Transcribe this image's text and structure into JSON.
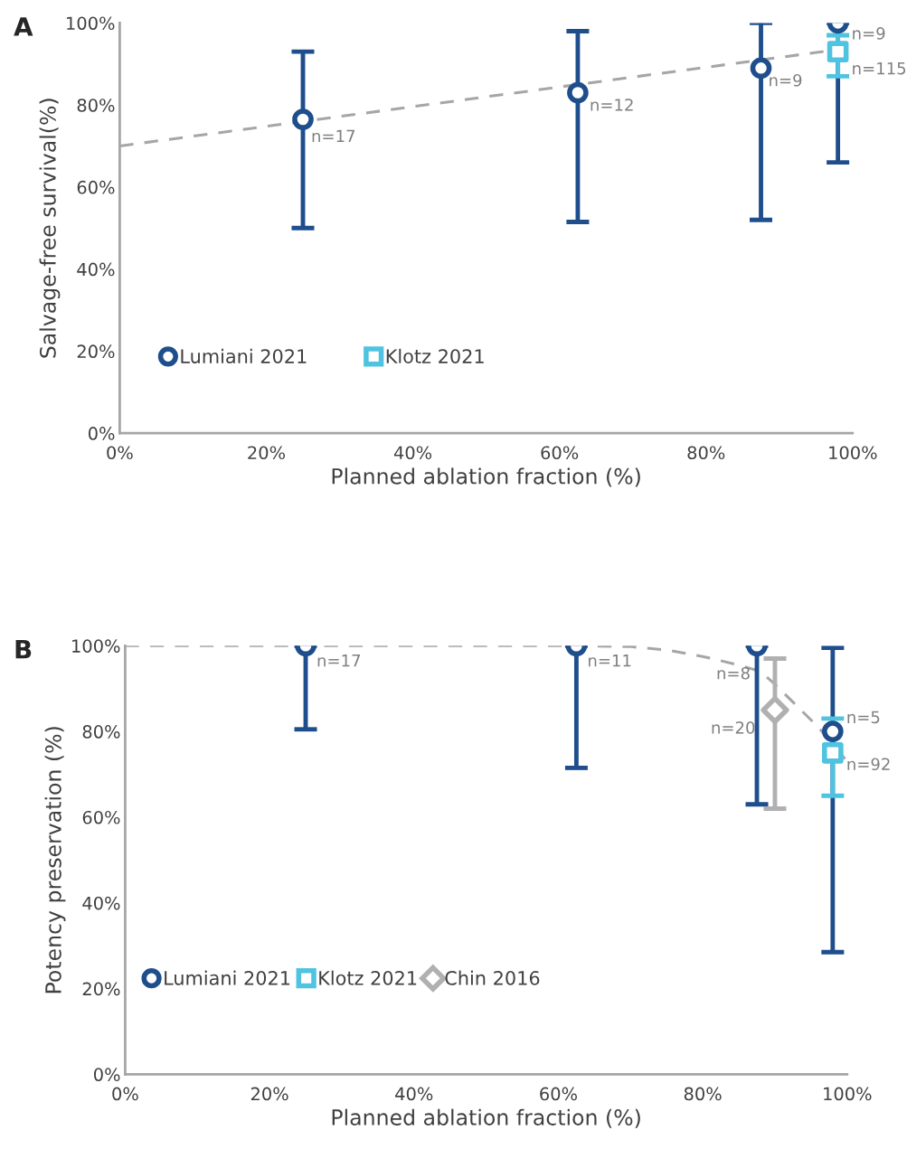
{
  "chart_data": [
    {
      "type": "scatter",
      "title": "A",
      "xlabel": "Planned ablation fraction (%)",
      "ylabel": "Salvage-free survival(%)",
      "xlim": [
        0,
        100
      ],
      "ylim": [
        0,
        100
      ],
      "xticks": [
        {
          "value": 0,
          "label": "0%"
        },
        {
          "value": 20,
          "label": "20%"
        },
        {
          "value": 40,
          "label": "40%"
        },
        {
          "value": 60,
          "label": "60%"
        },
        {
          "value": 80,
          "label": "80%"
        },
        {
          "value": 100,
          "label": "100%"
        }
      ],
      "yticks": [
        {
          "value": 0,
          "label": "0%"
        },
        {
          "value": 20,
          "label": "20%"
        },
        {
          "value": 40,
          "label": "40%"
        },
        {
          "value": 60,
          "label": "60%"
        },
        {
          "value": 80,
          "label": "80%"
        },
        {
          "value": 100,
          "label": "100%"
        }
      ],
      "grid": false,
      "legend": "bottom left",
      "series": [
        {
          "type": "line",
          "color": "#a6a6a6",
          "line_style": "dashed",
          "marker": "none",
          "x": [
            0,
            100
          ],
          "values": [
            70,
            94
          ]
        },
        {
          "name": "Lumiani 2021",
          "color": "#1f4e8c",
          "marker": "circle",
          "x": [
            25,
            62.5,
            87.5,
            98
          ],
          "values": [
            76.5,
            83,
            89,
            100
          ],
          "errors": [
            [
              50,
              93
            ],
            [
              51.5,
              98
            ],
            [
              52,
              100
            ],
            [
              66,
              100
            ]
          ]
        },
        {
          "name": "Klotz 2021",
          "color": "#4fc3e0",
          "marker": "square",
          "x": [
            98
          ],
          "values": [
            93
          ],
          "errors": [
            [
              87,
              97
            ]
          ]
        }
      ],
      "annotations": [
        {
          "text": "n=17",
          "x": 25,
          "y": 76.5
        },
        {
          "text": "n=12",
          "x": 62.5,
          "y": 83
        },
        {
          "text": "n=9",
          "x": 87.5,
          "y": 89
        },
        {
          "text": "n=9",
          "x": 98,
          "y": 100
        },
        {
          "text": "n=115",
          "x": 98,
          "y": 93
        }
      ]
    },
    {
      "type": "scatter",
      "title": "B",
      "xlabel": "Planned ablation fraction (%)",
      "ylabel": "Potency preservation (%)",
      "xlim": [
        0,
        100
      ],
      "ylim": [
        0,
        100
      ],
      "xticks": [
        {
          "value": 0,
          "label": "0%"
        },
        {
          "value": 20,
          "label": "20%"
        },
        {
          "value": 40,
          "label": "40%"
        },
        {
          "value": 60,
          "label": "60%"
        },
        {
          "value": 80,
          "label": "80%"
        },
        {
          "value": 100,
          "label": "100%"
        }
      ],
      "yticks": [
        {
          "value": 0,
          "label": "0%"
        },
        {
          "value": 20,
          "label": "20%"
        },
        {
          "value": 40,
          "label": "40%"
        },
        {
          "value": 60,
          "label": "60%"
        },
        {
          "value": 80,
          "label": "80%"
        },
        {
          "value": 100,
          "label": "100%"
        }
      ],
      "grid": false,
      "legend": "bottom left",
      "series": [
        {
          "type": "line",
          "color": "#a6a6a6",
          "line_style": "dashed",
          "marker": "none",
          "x": [
            0,
            60,
            70,
            75,
            80,
            85,
            88,
            90,
            93,
            96,
            98,
            100
          ],
          "values": [
            100,
            100,
            99.8,
            99,
            97.5,
            95.5,
            94,
            91,
            86,
            81,
            77,
            73
          ]
        },
        {
          "name": "Lumiani 2021",
          "color": "#1f4e8c",
          "marker": "circle",
          "x": [
            25,
            62.5,
            87.5,
            98
          ],
          "values": [
            100,
            100,
            100,
            80
          ],
          "errors": [
            [
              80.5,
              100
            ],
            [
              71.5,
              100
            ],
            [
              63,
              100
            ],
            [
              28.5,
              99.5
            ]
          ]
        },
        {
          "name": "Klotz 2021",
          "color": "#4fc3e0",
          "marker": "square",
          "x": [
            98
          ],
          "values": [
            75
          ],
          "errors": [
            [
              65,
              83
            ]
          ]
        },
        {
          "name": "Chin 2016",
          "color": "#b0b0b0",
          "marker": "diamond",
          "x": [
            90
          ],
          "values": [
            85
          ],
          "errors": [
            [
              62,
              97
            ]
          ]
        }
      ],
      "annotations": [
        {
          "text": "n=17",
          "x": 25,
          "y": 100
        },
        {
          "text": "n=11",
          "x": 62.5,
          "y": 100
        },
        {
          "text": "n=8",
          "x": 87.5,
          "y": 100
        },
        {
          "text": "n=20",
          "x": 90,
          "y": 85
        },
        {
          "text": "n=5",
          "x": 98,
          "y": 83
        },
        {
          "text": "n=92",
          "x": 98,
          "y": 75
        }
      ]
    }
  ]
}
